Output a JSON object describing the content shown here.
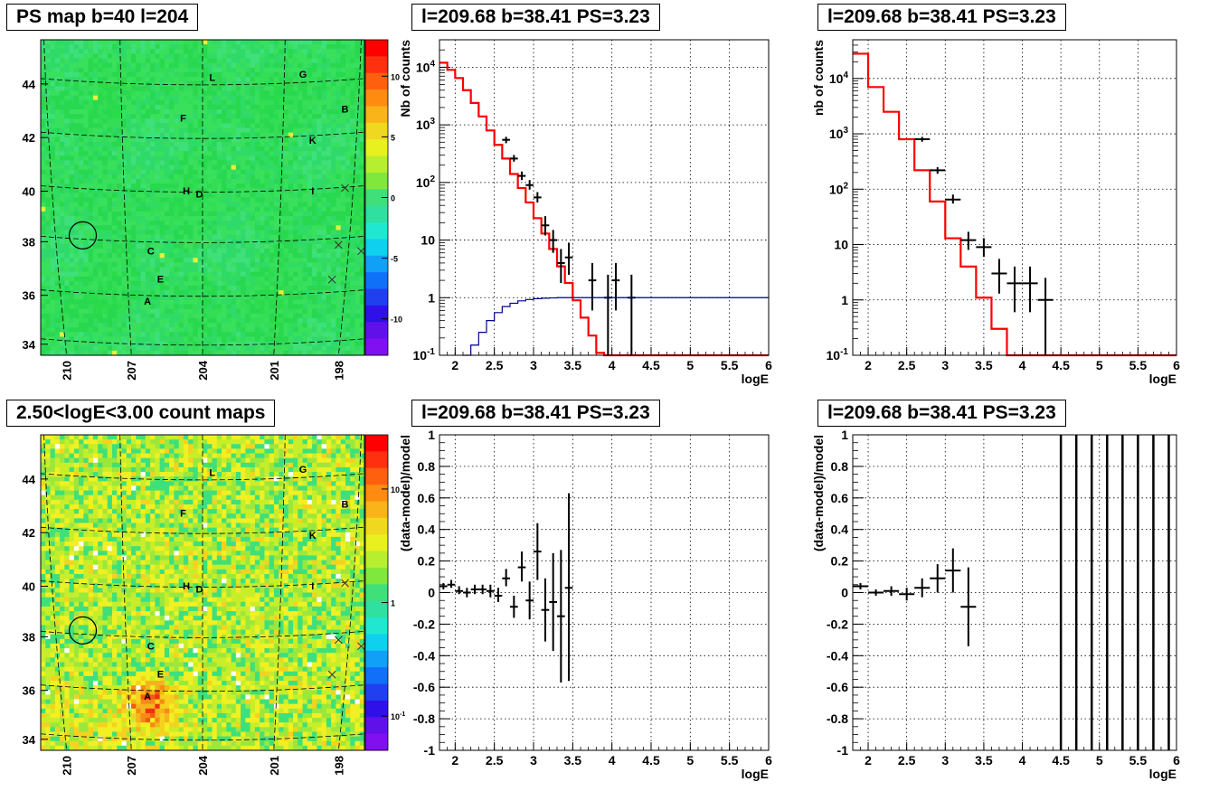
{
  "chart_data": [
    {
      "type": "heatmap",
      "title": "PS map b=40 l=204",
      "colorbar": {
        "ticks": [
          10,
          5,
          0,
          -5,
          -10
        ],
        "range": [
          -13,
          13
        ],
        "scale": "linear"
      },
      "x_ticks": [
        "210",
        "207",
        "204",
        "201",
        "198"
      ],
      "y_ticks": [
        "34",
        "36",
        "38",
        "40",
        "42",
        "44"
      ],
      "source_labels": [
        "A",
        "B",
        "C",
        "D",
        "E",
        "F",
        "G",
        "H",
        "I",
        "K",
        "L"
      ],
      "grid": true
    },
    {
      "type": "line",
      "title": "l=209.68 b=38.41 PS=3.23",
      "xlabel": "logE",
      "ylabel": "Nb of counts",
      "xlim": [
        1.8,
        6
      ],
      "ylim": [
        0.1,
        30000
      ],
      "yscale": "log",
      "x_ticks": [
        "2",
        "2.5",
        "3",
        "3.5",
        "4",
        "4.5",
        "5",
        "5.5",
        "6"
      ],
      "y_ticks": [
        "10^-1",
        "1",
        "10",
        "10^2",
        "10^3",
        "10^4"
      ],
      "grid": true,
      "series": [
        {
          "role": "model",
          "color": "#ff0000",
          "style": "step",
          "bin_width": 0.1,
          "x_start": 1.8,
          "values": [
            12000,
            9000,
            6500,
            4000,
            2400,
            1400,
            800,
            450,
            260,
            140,
            80,
            45,
            24,
            13,
            7,
            3.5,
            1.8,
            0.9,
            0.45,
            0.22,
            0.11,
            0.1,
            0.1,
            0.1,
            0.1,
            0.1,
            0.1,
            0.1,
            0.1,
            0.1,
            0.1,
            0.1,
            0.1,
            0.1,
            0.1,
            0.1,
            0.1,
            0.1,
            0.1,
            0.1,
            0.1,
            0.1
          ]
        },
        {
          "role": "data",
          "color": "#000000",
          "style": "errorbar",
          "points": [
            [
              2.65,
              550,
              0.05,
              480,
              620
            ],
            [
              2.75,
              260,
              0.05,
              230,
              300
            ],
            [
              2.85,
              130,
              0.05,
              110,
              155
            ],
            [
              2.95,
              90,
              0.05,
              75,
              110
            ],
            [
              3.05,
              55,
              0.05,
              45,
              68
            ],
            [
              3.15,
              18,
              0.05,
              12,
              26
            ],
            [
              3.25,
              10,
              0.05,
              6,
              15
            ],
            [
              3.35,
              4,
              0.05,
              1.8,
              7
            ],
            [
              3.45,
              5,
              0.05,
              2.5,
              9
            ],
            [
              3.75,
              2,
              0.05,
              0.6,
              4
            ],
            [
              3.95,
              1,
              0.05,
              0.1,
              2.5
            ],
            [
              4.05,
              2,
              0.05,
              0.6,
              4
            ],
            [
              4.25,
              1,
              0.05,
              0.1,
              2.5
            ]
          ]
        },
        {
          "role": "efficiency",
          "color": "#00008b",
          "style": "step",
          "bin_width": 0.1,
          "x_start": 2.1,
          "values": [
            0.1,
            0.15,
            0.25,
            0.4,
            0.55,
            0.7,
            0.8,
            0.88,
            0.93,
            0.96,
            0.98,
            0.99,
            1,
            1,
            1,
            1,
            1,
            1,
            1,
            1,
            1,
            1,
            1,
            1,
            1,
            1,
            1,
            1,
            1,
            1,
            1,
            1,
            1,
            1,
            1,
            1,
            1,
            1,
            1
          ]
        }
      ]
    },
    {
      "type": "line",
      "title": "l=209.68 b=38.41 PS=3.23",
      "xlabel": "logE",
      "ylabel": "nb of counts",
      "xlim": [
        1.8,
        6
      ],
      "ylim": [
        0.1,
        50000
      ],
      "yscale": "log",
      "x_ticks": [
        "2",
        "2.5",
        "3",
        "3.5",
        "4",
        "4.5",
        "5",
        "5.5",
        "6"
      ],
      "y_ticks": [
        "10^-1",
        "1",
        "10",
        "10^2",
        "10^3",
        "10^4"
      ],
      "grid": true,
      "series": [
        {
          "role": "model",
          "color": "#ff0000",
          "style": "step",
          "bin_width": 0.2,
          "x_start": 1.8,
          "values": [
            28000,
            7000,
            2500,
            800,
            220,
            60,
            13,
            4,
            1.1,
            0.3,
            0.1,
            0.1,
            0.1,
            0.1,
            0.1,
            0.1,
            0.1,
            0.1,
            0.1,
            0.1,
            0.1
          ]
        },
        {
          "role": "data",
          "color": "#000000",
          "style": "errorbar",
          "points": [
            [
              2.7,
              800,
              0.1,
              720,
              880
            ],
            [
              2.9,
              220,
              0.1,
              190,
              250
            ],
            [
              3.1,
              65,
              0.1,
              55,
              80
            ],
            [
              3.3,
              12,
              0.1,
              8,
              17
            ],
            [
              3.5,
              9,
              0.1,
              6,
              13
            ],
            [
              3.7,
              3,
              0.1,
              1.3,
              5.5
            ],
            [
              3.9,
              2,
              0.1,
              0.6,
              4
            ],
            [
              4.1,
              2,
              0.1,
              0.6,
              4
            ],
            [
              4.3,
              1,
              0.1,
              0.1,
              2.5
            ]
          ]
        }
      ]
    },
    {
      "type": "heatmap",
      "title": "2.50<logE<3.00 count maps",
      "colorbar": {
        "ticks": [
          "10",
          "1",
          "10^-1"
        ],
        "range": [
          0.05,
          30
        ],
        "scale": "log"
      },
      "x_ticks": [
        "210",
        "207",
        "204",
        "201",
        "198"
      ],
      "y_ticks": [
        "34",
        "36",
        "38",
        "40",
        "42",
        "44"
      ],
      "source_labels": [
        "A",
        "B",
        "C",
        "D",
        "E",
        "F",
        "G",
        "H",
        "I",
        "K",
        "L"
      ],
      "grid": true
    },
    {
      "type": "scatter",
      "title": "l=209.68 b=38.41 PS=3.23",
      "xlabel": "logE",
      "ylabel": "(data-model)/model",
      "xlim": [
        1.8,
        6
      ],
      "ylim": [
        -1,
        1
      ],
      "x_ticks": [
        "2",
        "2.5",
        "3",
        "3.5",
        "4",
        "4.5",
        "5",
        "5.5",
        "6"
      ],
      "y_ticks": [
        "-1",
        "-0.8",
        "-0.6",
        "-0.4",
        "-0.2",
        "0",
        "0.2",
        "0.4",
        "0.6",
        "0.8",
        "1"
      ],
      "grid": true,
      "series": [
        {
          "role": "residual",
          "color": "#000000",
          "style": "errorbar",
          "points": [
            [
              1.85,
              0.04,
              0.05,
              0.02,
              0.06
            ],
            [
              1.95,
              0.05,
              0.05,
              0.03,
              0.08
            ],
            [
              2.05,
              0.01,
              0.05,
              -0.01,
              0.04
            ],
            [
              2.15,
              0.0,
              0.05,
              -0.03,
              0.03
            ],
            [
              2.25,
              0.02,
              0.05,
              -0.01,
              0.05
            ],
            [
              2.35,
              0.02,
              0.05,
              -0.01,
              0.05
            ],
            [
              2.45,
              0.01,
              0.05,
              -0.03,
              0.05
            ],
            [
              2.55,
              -0.02,
              0.05,
              -0.06,
              0.03
            ],
            [
              2.65,
              0.09,
              0.05,
              0.04,
              0.15
            ],
            [
              2.75,
              -0.09,
              0.05,
              -0.16,
              -0.02
            ],
            [
              2.85,
              0.16,
              0.05,
              0.07,
              0.26
            ],
            [
              2.95,
              -0.05,
              0.05,
              -0.17,
              0.07
            ],
            [
              3.05,
              0.26,
              0.05,
              0.08,
              0.44
            ],
            [
              3.15,
              -0.11,
              0.05,
              -0.31,
              0.09
            ],
            [
              3.25,
              -0.06,
              0.05,
              -0.37,
              0.25
            ],
            [
              3.35,
              -0.15,
              0.05,
              -0.57,
              0.27
            ],
            [
              3.45,
              0.03,
              0.05,
              -0.56,
              0.63
            ]
          ]
        }
      ]
    },
    {
      "type": "scatter",
      "title": "l=209.68 b=38.41 PS=3.23",
      "xlabel": "logE",
      "ylabel": "(data-model)/model",
      "xlim": [
        1.8,
        6
      ],
      "ylim": [
        -1,
        1
      ],
      "x_ticks": [
        "2",
        "2.5",
        "3",
        "3.5",
        "4",
        "4.5",
        "5",
        "5.5",
        "6"
      ],
      "y_ticks": [
        "-1",
        "-0.8",
        "-0.6",
        "-0.4",
        "-0.2",
        "0",
        "0.2",
        "0.4",
        "0.6",
        "0.8",
        "1"
      ],
      "grid": true,
      "series": [
        {
          "role": "residual",
          "color": "#000000",
          "style": "errorbar",
          "points": [
            [
              1.9,
              0.04,
              0.1,
              0.02,
              0.06
            ],
            [
              2.1,
              0.0,
              0.1,
              -0.02,
              0.02
            ],
            [
              2.3,
              0.01,
              0.1,
              -0.02,
              0.04
            ],
            [
              2.5,
              -0.01,
              0.1,
              -0.05,
              0.03
            ],
            [
              2.7,
              0.03,
              0.1,
              -0.03,
              0.09
            ],
            [
              2.9,
              0.09,
              0.1,
              0.0,
              0.18
            ],
            [
              3.1,
              0.14,
              0.1,
              0.0,
              0.28
            ],
            [
              3.3,
              -0.09,
              0.1,
              -0.34,
              0.16
            ]
          ]
        },
        {
          "role": "vertical-lines",
          "color": "#000000",
          "x": [
            4.5,
            4.7,
            4.9,
            5.1,
            5.3,
            5.5,
            5.7,
            5.9
          ]
        }
      ]
    }
  ]
}
